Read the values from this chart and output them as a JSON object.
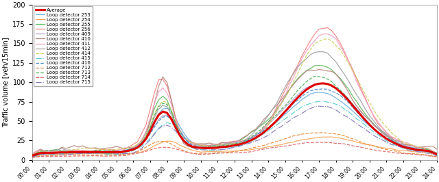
{
  "ylabel": "Traffic volume [veh/15min]",
  "ylim": [
    0,
    200
  ],
  "yticks": [
    0,
    25,
    50,
    75,
    100,
    125,
    150,
    175,
    200
  ],
  "colors": {
    "Average": "#dd0000",
    "253": "#6ab0de",
    "254": "#f5a55a",
    "255": "#5cb85c",
    "256": "#f08080",
    "409": "#b09fcc",
    "410": "#b5847a",
    "411": "#f4a0c0",
    "412": "#a0a0a0",
    "414": "#cccc55",
    "415": "#55cccc",
    "416": "#4488cc",
    "712": "#e88830",
    "713": "#44aa55",
    "714": "#e06060",
    "715": "#8877bb"
  },
  "linestyles": {
    "Average": "-",
    "253": "-",
    "254": "-",
    "255": "-",
    "256": "-",
    "409": "-",
    "410": "-",
    "411": "-",
    "412": "-",
    "414": "--",
    "415": "-.",
    "416": "--",
    "712": "--",
    "713": "--",
    "714": "--",
    "715": "-."
  }
}
